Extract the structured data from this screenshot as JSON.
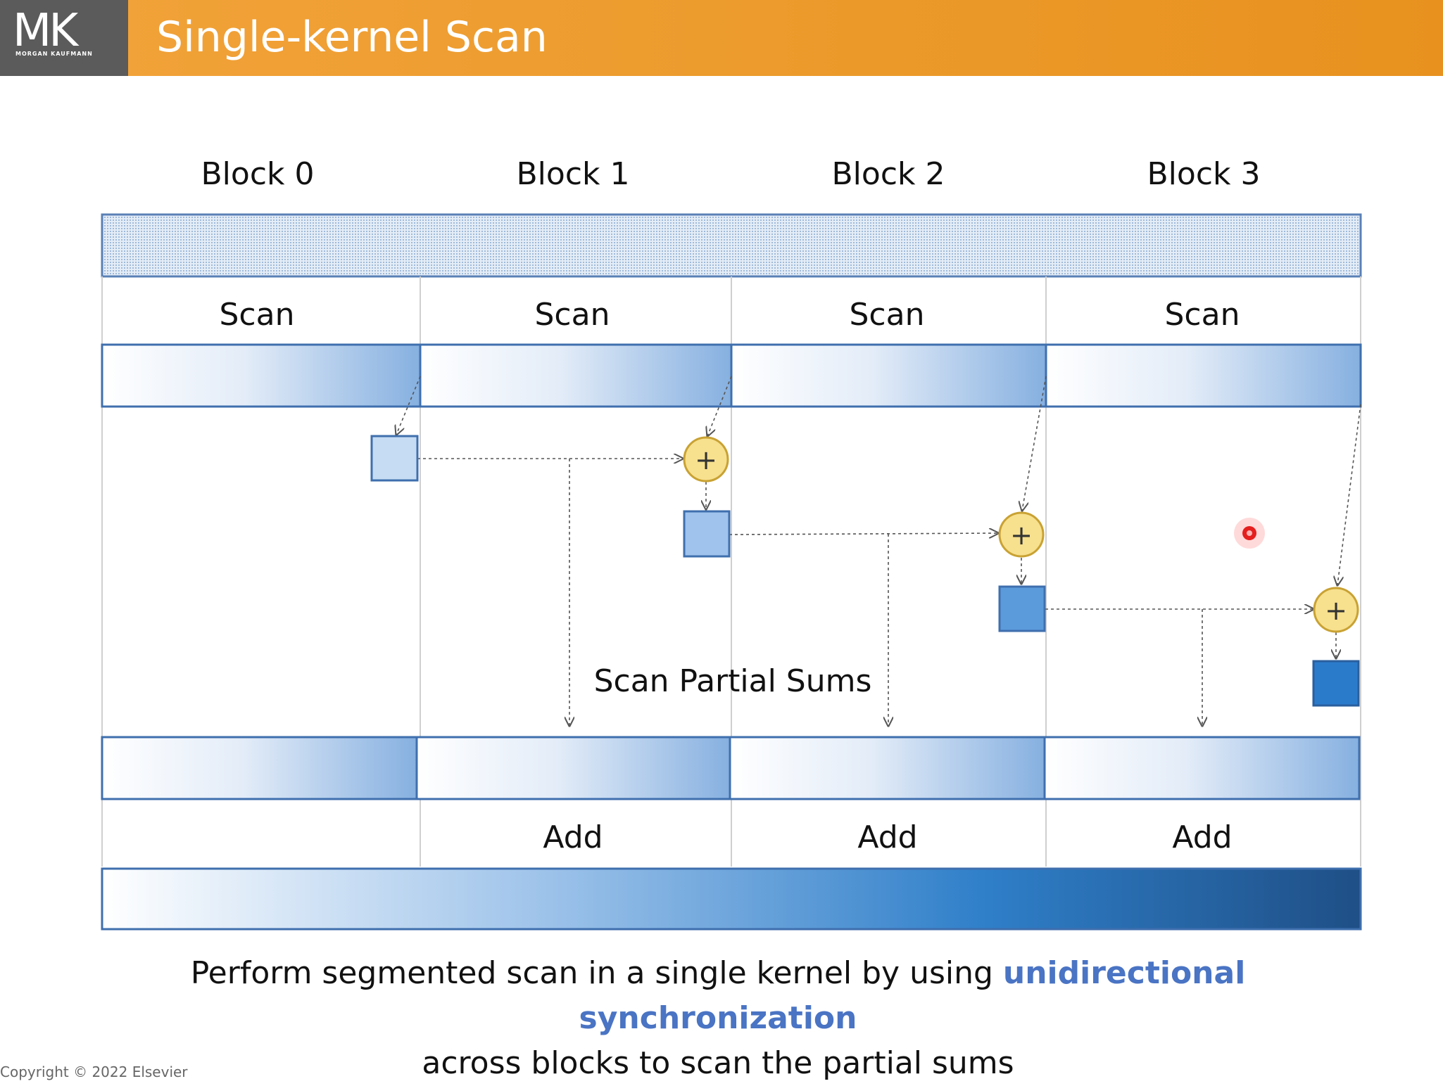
{
  "header": {
    "logo_text": "MK",
    "logo_subtext": "MORGAN KAUFMANN",
    "title": "Single-kernel Scan"
  },
  "diagram": {
    "block_labels": [
      "Block 0",
      "Block 1",
      "Block 2",
      "Block 3"
    ],
    "scan_labels": [
      "Scan",
      "Scan",
      "Scan",
      "Scan"
    ],
    "partial_sums_label": "Scan Partial Sums",
    "add_labels": [
      "Add",
      "Add",
      "Add"
    ],
    "plus_symbol": "+"
  },
  "caption": {
    "line1_prefix": "Perform segmented scan in a single kernel by using ",
    "line1_highlight": "unidirectional synchronization",
    "line2": "across blocks to scan the partial sums"
  },
  "copyright": "Copyright © 2022 Elsevier",
  "colors": {
    "header": "#eb9a2a",
    "logo_bg": "#5b5b5b",
    "highlight": "#4a74c4",
    "bar_border": "#3f6fae",
    "plus_fill": "#f7e08e",
    "plus_border": "#c9a233"
  }
}
